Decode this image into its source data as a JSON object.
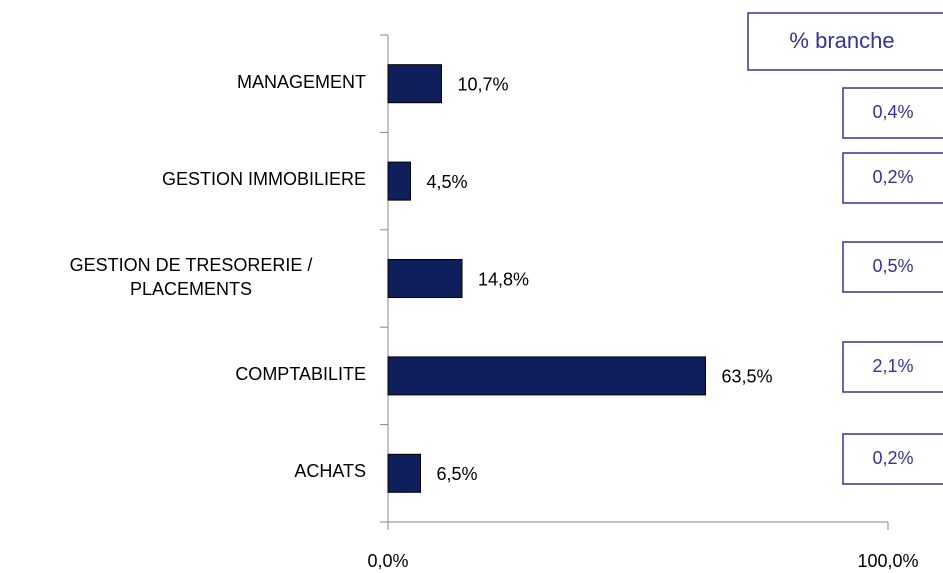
{
  "chart_data": {
    "type": "bar",
    "orientation": "horizontal",
    "categories": [
      "MANAGEMENT",
      "GESTION IMMOBILIERE",
      "GESTION DE TRESORERIE / PLACEMENTS",
      "COMPTABILITE",
      "ACHATS"
    ],
    "values": [
      10.7,
      4.5,
      14.8,
      63.5,
      6.5
    ],
    "value_labels": [
      "10,7%",
      "4,5%",
      "14,8%",
      "63,5%",
      "6,5%"
    ],
    "color": "#0f1f5c",
    "xlim": [
      0,
      100
    ],
    "xticks": [
      {
        "value": 0,
        "label": "0,0%"
      },
      {
        "value": 100,
        "label": "100,0%"
      }
    ],
    "side_table": {
      "header": "% branche",
      "values": [
        0.4,
        0.2,
        0.5,
        2.1,
        0.2
      ],
      "value_labels": [
        "0,4%",
        "0,2%",
        "0,5%",
        "2,1%",
        "0,2%"
      ],
      "color": "#333399"
    }
  }
}
